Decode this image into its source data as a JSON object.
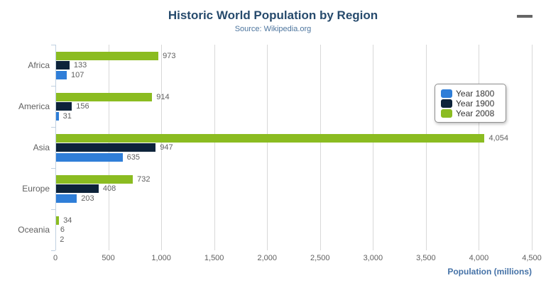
{
  "header": {
    "title": "Historic World Population by Region",
    "subtitle": "Source: Wikipedia.org"
  },
  "menu": {
    "icon": "hamburger-menu-icon"
  },
  "colors": {
    "title": "#274b6d",
    "subtitle": "#4d759e",
    "axis_title": "#4572a7",
    "axis_line": "#c0d0e0",
    "gridline": "#d8d8d8",
    "labels": "#606060",
    "legend_text": "#333333",
    "legend_border": "#909090",
    "series_blue": "#2f7ed8",
    "series_navy": "#0d233a",
    "series_green": "#8bbc21"
  },
  "chart_data": {
    "type": "bar",
    "orientation": "horizontal",
    "title": "Historic World Population by Region",
    "subtitle": "Source: Wikipedia.org",
    "categories": [
      "Africa",
      "America",
      "Asia",
      "Europe",
      "Oceania"
    ],
    "series": [
      {
        "name": "Year 1800",
        "color": "#2f7ed8",
        "values": [
          107,
          31,
          635,
          203,
          2
        ]
      },
      {
        "name": "Year 1900",
        "color": "#0d233a",
        "values": [
          133,
          156,
          947,
          408,
          6
        ]
      },
      {
        "name": "Year 2008",
        "color": "#8bbc21",
        "values": [
          973,
          914,
          4054,
          732,
          34
        ]
      }
    ],
    "xlabel": "Population (millions)",
    "ylabel": "",
    "xlim": [
      0,
      4500
    ],
    "x_tick_interval": 500,
    "x_tick_labels": [
      "0",
      "500",
      "1,000",
      "1,500",
      "2,000",
      "2,500",
      "3,000",
      "3,500",
      "4,000",
      "4,500"
    ],
    "grid": true,
    "data_labels": true,
    "legend_position": "right",
    "legend_items": [
      "Year 1800",
      "Year 1900",
      "Year 2008"
    ]
  }
}
